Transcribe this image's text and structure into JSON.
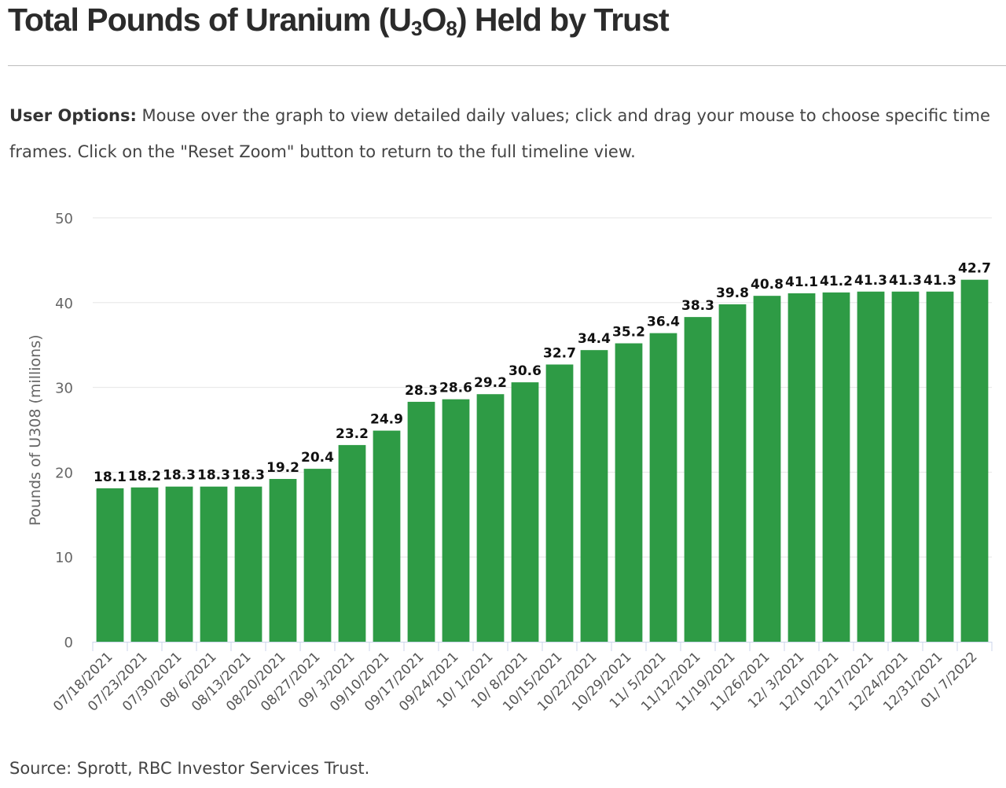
{
  "title": {
    "main": "Total Pounds of Uranium (U",
    "sub1": "3",
    "mid": "O",
    "sub2": "8",
    "end": ") Held by Trust"
  },
  "options": {
    "lead": "User Options:",
    "text": " Mouse over the graph to view detailed daily values; click and drag your mouse to choose specific time frames. Click on the \"Reset Zoom\" button to return to the full timeline view."
  },
  "source": "Source: Sprott, RBC Investor Services Trust.",
  "colors": {
    "bar": "#2e9b45",
    "grid": "#e6e6e6",
    "axis": "#ccd6eb"
  },
  "chart_data": {
    "type": "bar",
    "ylabel": "Pounds of U308 (millions)",
    "xlabel": "",
    "ylim": [
      0,
      50
    ],
    "yticks": [
      0,
      10,
      20,
      30,
      40,
      50
    ],
    "grid": true,
    "categories": [
      "07/18/2021",
      "07/23/2021",
      "07/30/2021",
      "08/ 6/2021",
      "08/13/2021",
      "08/20/2021",
      "08/27/2021",
      "09/ 3/2021",
      "09/10/2021",
      "09/17/2021",
      "09/24/2021",
      "10/ 1/2021",
      "10/ 8/2021",
      "10/15/2021",
      "10/22/2021",
      "10/29/2021",
      "11/ 5/2021",
      "11/12/2021",
      "11/19/2021",
      "11/26/2021",
      "12/ 3/2021",
      "12/10/2021",
      "12/17/2021",
      "12/24/2021",
      "12/31/2021",
      "01/ 7/2022"
    ],
    "values": [
      18.1,
      18.2,
      18.3,
      18.3,
      18.3,
      19.2,
      20.4,
      23.2,
      24.9,
      28.3,
      28.6,
      29.2,
      30.6,
      32.7,
      34.4,
      35.2,
      36.4,
      38.3,
      39.8,
      40.8,
      41.1,
      41.2,
      41.3,
      41.3,
      41.3,
      42.7
    ],
    "data_labels": [
      "18.1",
      "18.2",
      "18.3",
      "18.3",
      "18.3",
      "19.2",
      "20.4",
      "23.2",
      "24.9",
      "28.3",
      "28.6",
      "29.2",
      "30.6",
      "32.7",
      "34.4",
      "35.2",
      "36.4",
      "38.3",
      "39.8",
      "40.8",
      "41.1",
      "41.2",
      "41.3",
      "41.3",
      "41.3",
      "42.7"
    ]
  }
}
